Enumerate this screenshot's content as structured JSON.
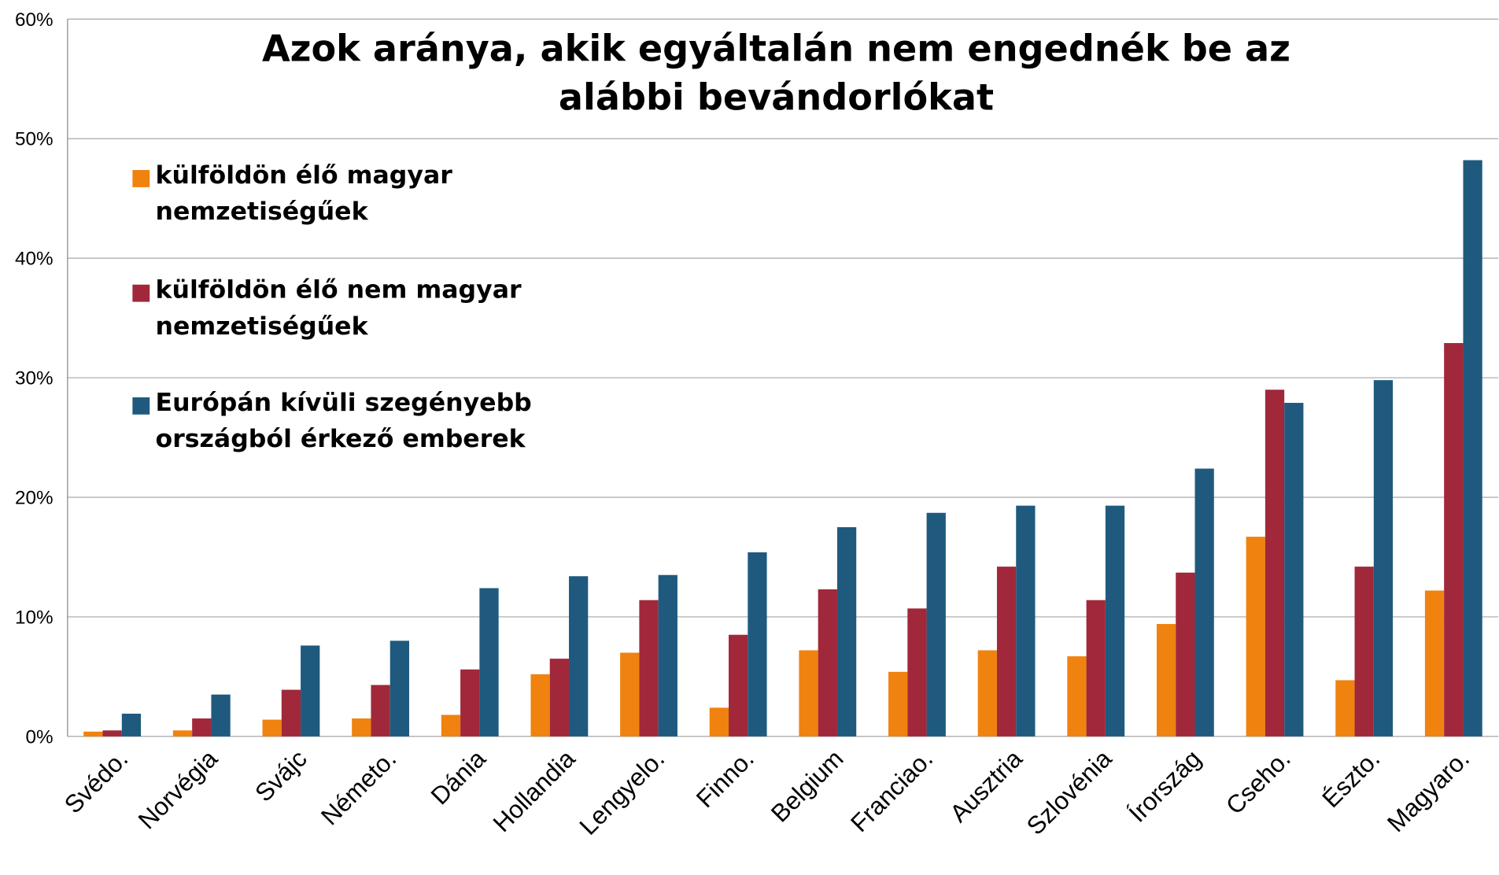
{
  "chart_data": {
    "type": "bar",
    "title": "Azok aránya, akik egyáltalán nem engednék be az alábbi bevándorlókat",
    "categories": [
      "Svédo.",
      "Norvégia",
      "Svájc",
      "Németo.",
      "Dánia",
      "Hollandia",
      "Lengyelo.",
      "Finno.",
      "Belgium",
      "Franciao.",
      "Ausztria",
      "Szlovénia",
      "Írország",
      "Cseho.",
      "Észto.",
      "Magyaro."
    ],
    "series": [
      {
        "name": "külföldön élő magyar nemzetiségűek",
        "color": "#f0820f",
        "values": [
          0.4,
          0.5,
          1.4,
          1.5,
          1.8,
          5.2,
          7.0,
          2.4,
          7.2,
          5.4,
          7.2,
          6.7,
          9.4,
          16.7,
          4.7,
          12.2
        ]
      },
      {
        "name": "külföldön élő nem magyar nemzetiségűek",
        "color": "#a0283a",
        "values": [
          0.5,
          1.5,
          3.9,
          4.3,
          5.6,
          6.5,
          11.4,
          8.5,
          12.3,
          10.7,
          14.2,
          11.4,
          13.7,
          29.0,
          14.2,
          32.9
        ]
      },
      {
        "name": "Európán kívüli szegényebb országból érkező emberek",
        "color": "#1f5a7e",
        "values": [
          1.9,
          3.5,
          7.6,
          8.0,
          12.4,
          13.4,
          13.5,
          15.4,
          17.5,
          18.7,
          19.3,
          19.3,
          22.4,
          27.9,
          29.8,
          48.2
        ]
      }
    ],
    "ylim": [
      0,
      60
    ],
    "yticks": [
      {
        "value": 0,
        "label": "0%"
      },
      {
        "value": 10,
        "label": "10%"
      },
      {
        "value": 20,
        "label": "20%"
      },
      {
        "value": 30,
        "label": "30%"
      },
      {
        "value": 40,
        "label": "40%"
      },
      {
        "value": 50,
        "label": "50%"
      },
      {
        "value": 60,
        "label": "60%"
      }
    ],
    "grid": true
  }
}
